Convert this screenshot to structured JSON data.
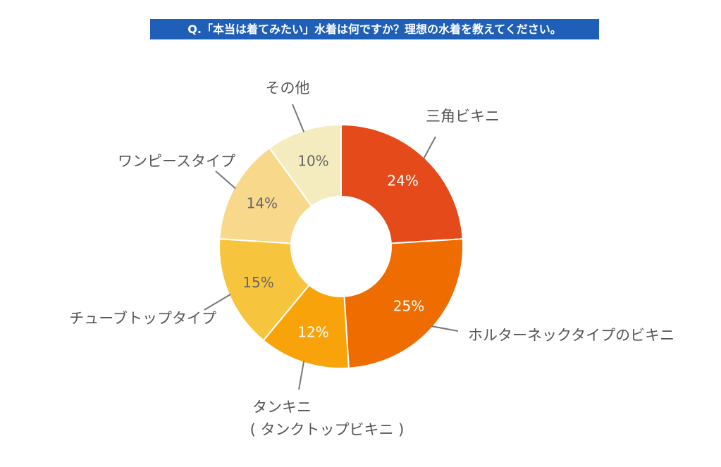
{
  "title": "Q.「本当は着てみたい」水着は何ですか？理想の水着を教えてください。",
  "chart_data": {
    "type": "pie",
    "variant": "donut",
    "title": "Q.「本当は着てみたい」水着は何ですか？理想の水着を教えてください。",
    "unit": "%",
    "slices": [
      {
        "label": "三角ビキニ",
        "value": 24,
        "display": "24%",
        "color": "#e54b1a"
      },
      {
        "label": "ホルターネックタイプのビキニ",
        "value": 25,
        "display": "25%",
        "color": "#ef6c00"
      },
      {
        "label": "タンキニ",
        "sublabel": "( タンクトップビキニ )",
        "value": 12,
        "display": "12%",
        "color": "#f9a30b"
      },
      {
        "label": "チューブトップタイプ",
        "value": 15,
        "display": "15%",
        "color": "#f7c53d"
      },
      {
        "label": "ワンピースタイプ",
        "value": 14,
        "display": "14%",
        "color": "#f8d98c"
      },
      {
        "label": "その他",
        "value": 10,
        "display": "10%",
        "color": "#f4ecbf"
      }
    ]
  }
}
